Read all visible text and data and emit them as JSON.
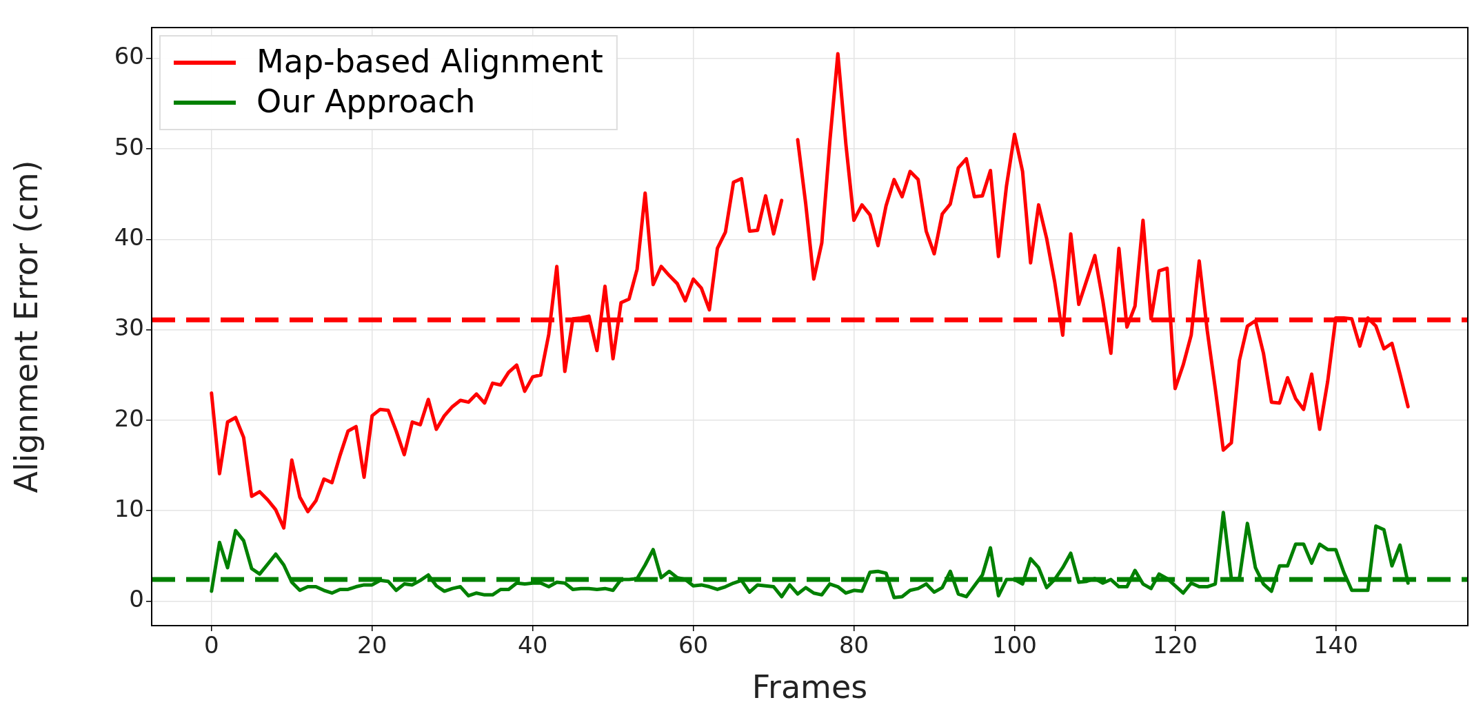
{
  "chart_data": {
    "type": "line",
    "xlabel": "Frames",
    "ylabel": "Alignment Error (cm)",
    "xlim": [
      -7.45,
      156.45
    ],
    "xticks": [
      0,
      20,
      40,
      60,
      80,
      100,
      120,
      140
    ],
    "ylim": [
      -2.7,
      63.4
    ],
    "yticks": [
      0,
      10,
      20,
      30,
      40,
      50,
      60
    ],
    "x": [
      0,
      1,
      2,
      3,
      4,
      5,
      6,
      7,
      8,
      9,
      10,
      11,
      12,
      13,
      14,
      15,
      16,
      17,
      18,
      19,
      20,
      21,
      22,
      23,
      24,
      25,
      26,
      27,
      28,
      29,
      30,
      31,
      32,
      33,
      34,
      35,
      36,
      37,
      38,
      39,
      40,
      41,
      42,
      43,
      44,
      45,
      46,
      47,
      48,
      49,
      50,
      51,
      52,
      53,
      54,
      55,
      56,
      57,
      58,
      59,
      60,
      61,
      62,
      63,
      64,
      65,
      66,
      67,
      68,
      69,
      70,
      71,
      72,
      73,
      74,
      75,
      76,
      77,
      78,
      79,
      80,
      81,
      82,
      83,
      84,
      85,
      86,
      87,
      88,
      89,
      90,
      91,
      92,
      93,
      94,
      95,
      96,
      97,
      98,
      99,
      100,
      101,
      102,
      103,
      104,
      105,
      106,
      107,
      108,
      109,
      110,
      111,
      112,
      113,
      114,
      115,
      116,
      117,
      118,
      119,
      120,
      121,
      122,
      123,
      124,
      125,
      126,
      127,
      128,
      129,
      130,
      131,
      132,
      133,
      134,
      135,
      136,
      137,
      138,
      139,
      140,
      141,
      142,
      143,
      144,
      145,
      146,
      147,
      148,
      149
    ],
    "grid": true,
    "legend": "top left",
    "marker": "none",
    "line_style": "solid",
    "series": [
      {
        "name": "Map-based Alignment",
        "color": "#ff0000",
        "values": [
          23.0,
          14.1,
          19.8,
          20.3,
          18.1,
          11.6,
          12.1,
          11.2,
          10.1,
          8.1,
          15.6,
          11.5,
          9.9,
          11.1,
          13.5,
          13.1,
          16.1,
          18.8,
          19.3,
          13.7,
          20.5,
          21.2,
          21.1,
          18.8,
          16.2,
          19.8,
          19.5,
          22.3,
          19.0,
          20.5,
          21.5,
          22.2,
          22.0,
          22.9,
          21.9,
          24.1,
          23.9,
          25.3,
          26.1,
          23.2,
          24.8,
          25.0,
          29.5,
          37.0,
          25.4,
          31.2,
          31.3,
          31.5,
          27.7,
          34.8,
          26.8,
          33.0,
          33.4,
          36.7,
          45.1,
          35.0,
          37.0,
          36.0,
          35.1,
          33.2,
          35.6,
          34.6,
          32.2,
          39.0,
          40.8,
          46.3,
          46.7,
          40.9,
          41.0,
          44.8,
          40.6,
          44.3,
          null,
          51.0,
          43.9,
          35.6,
          39.6,
          50.8,
          60.5,
          50.5,
          42.1,
          43.8,
          42.7,
          39.3,
          43.7,
          46.6,
          44.7,
          47.5,
          46.6,
          40.9,
          38.4,
          42.8,
          43.9,
          47.9,
          48.9,
          44.7,
          44.8,
          47.6,
          38.1,
          45.9,
          51.6,
          47.5,
          37.4,
          43.8,
          40.1,
          35.3,
          29.4,
          40.6,
          32.8,
          35.5,
          38.2,
          33.2,
          27.4,
          39.0,
          30.3,
          32.6,
          42.1,
          31.2,
          36.5,
          36.8,
          23.5,
          26.1,
          29.4,
          37.6,
          29.9,
          23.5,
          16.7,
          17.5,
          26.6,
          30.4,
          31.0,
          27.4,
          22.0,
          21.9,
          24.7,
          22.4,
          21.2,
          25.1,
          19.0,
          24.3,
          31.3,
          31.3,
          31.2,
          28.2,
          31.3,
          30.4,
          27.9,
          28.5,
          25.1,
          21.5
        ]
      },
      {
        "name": "Our Approach",
        "color": "#008000",
        "values": [
          1.1,
          6.5,
          3.7,
          7.8,
          6.7,
          3.6,
          3.0,
          4.1,
          5.2,
          4.0,
          2.1,
          1.2,
          1.6,
          1.6,
          1.2,
          0.9,
          1.3,
          1.3,
          1.6,
          1.8,
          1.8,
          2.3,
          2.2,
          1.2,
          1.9,
          1.8,
          2.3,
          2.9,
          1.7,
          1.1,
          1.4,
          1.6,
          0.6,
          0.9,
          0.7,
          0.7,
          1.3,
          1.3,
          2.0,
          1.9,
          2.0,
          2.0,
          1.6,
          2.1,
          2.0,
          1.3,
          1.4,
          1.4,
          1.3,
          1.4,
          1.2,
          2.4,
          2.4,
          2.5,
          4.0,
          5.7,
          2.6,
          3.3,
          2.6,
          2.4,
          1.7,
          1.8,
          1.6,
          1.3,
          1.6,
          2.0,
          2.3,
          1.0,
          1.8,
          1.7,
          1.6,
          0.5,
          1.8,
          0.8,
          1.5,
          0.9,
          0.7,
          1.9,
          1.6,
          0.9,
          1.2,
          1.1,
          3.2,
          3.3,
          3.1,
          0.4,
          0.5,
          1.2,
          1.4,
          1.9,
          1.0,
          1.5,
          3.3,
          0.8,
          0.5,
          1.7,
          2.9,
          5.9,
          0.6,
          2.4,
          2.4,
          1.9,
          4.7,
          3.7,
          1.5,
          2.4,
          3.7,
          5.3,
          2.1,
          2.2,
          2.5,
          2.0,
          2.4,
          1.6,
          1.6,
          3.4,
          1.9,
          1.4,
          3.0,
          2.5,
          1.7,
          0.9,
          2.0,
          1.6,
          1.6,
          1.9,
          9.8,
          2.5,
          2.5,
          8.6,
          3.7,
          1.9,
          1.1,
          3.9,
          3.9,
          6.3,
          6.3,
          4.2,
          6.3,
          5.7,
          5.7,
          3.2,
          1.2,
          1.2,
          1.2,
          8.3,
          7.9,
          3.9,
          6.2,
          2.0
        ]
      }
    ],
    "ref_lines": [
      {
        "axis": "y",
        "value": 31.1,
        "color": "#ff0000",
        "line_style": "dashed"
      },
      {
        "axis": "y",
        "value": 2.4,
        "color": "#008000",
        "line_style": "dashed"
      }
    ]
  }
}
